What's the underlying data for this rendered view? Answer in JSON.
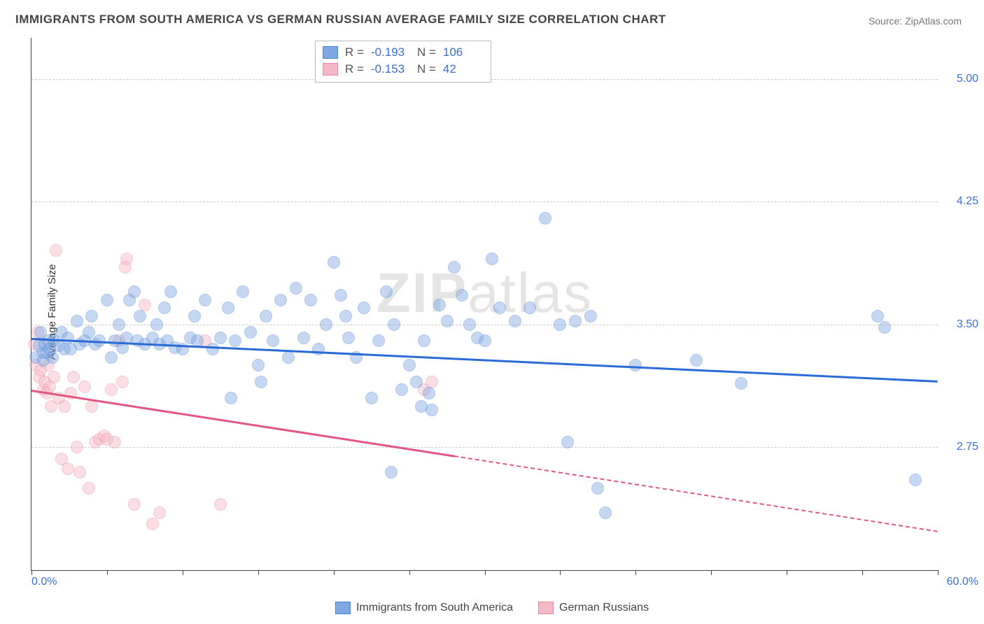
{
  "title": "IMMIGRANTS FROM SOUTH AMERICA VS GERMAN RUSSIAN AVERAGE FAMILY SIZE CORRELATION CHART",
  "source": "Source: ZipAtlas.com",
  "watermark_bold": "ZIP",
  "watermark_light": "atlas",
  "ylabel": "Average Family Size",
  "chart": {
    "type": "scatter",
    "xlim": [
      0,
      60
    ],
    "ylim": [
      2.0,
      5.25
    ],
    "xtick_min_label": "0.0%",
    "xtick_max_label": "60.0%",
    "xtick_positions": [
      0,
      5,
      10,
      15,
      20,
      25,
      30,
      35,
      40,
      45,
      50,
      55,
      60
    ],
    "ytick_positions": [
      2.75,
      3.5,
      4.25,
      5.0
    ],
    "ytick_labels": [
      "2.75",
      "3.50",
      "4.25",
      "5.00"
    ],
    "background_color": "#ffffff",
    "grid_color": "#cccccc",
    "marker_radius": 9,
    "marker_fill_opacity": 0.45,
    "marker_stroke_opacity": 0.85,
    "axis_label_color": "#3b6fd4",
    "title_fontsize": 17,
    "tick_fontsize": 16
  },
  "series": {
    "immigrants": {
      "label": "Immigrants from South America",
      "color": "#7fa8e2",
      "stroke": "#4f84d2",
      "trend_color": "#2a6bd6",
      "R": "-0.193",
      "N": "106",
      "trend": {
        "x1": 0,
        "y1": 3.42,
        "x2": 60,
        "y2": 3.16,
        "dash": false
      },
      "points": [
        [
          0.3,
          3.3
        ],
        [
          0.5,
          3.37
        ],
        [
          0.6,
          3.45
        ],
        [
          0.8,
          3.28
        ],
        [
          0.8,
          3.33
        ],
        [
          0.9,
          3.38
        ],
        [
          1.0,
          3.33
        ],
        [
          1.1,
          3.4
        ],
        [
          1.2,
          3.35
        ],
        [
          1.4,
          3.3
        ],
        [
          1.5,
          3.4
        ],
        [
          1.8,
          3.37
        ],
        [
          2.0,
          3.45
        ],
        [
          2.2,
          3.35
        ],
        [
          2.4,
          3.42
        ],
        [
          2.6,
          3.35
        ],
        [
          3.0,
          3.52
        ],
        [
          3.2,
          3.38
        ],
        [
          3.5,
          3.4
        ],
        [
          3.8,
          3.45
        ],
        [
          4.0,
          3.55
        ],
        [
          4.2,
          3.38
        ],
        [
          4.5,
          3.4
        ],
        [
          5.0,
          3.65
        ],
        [
          5.3,
          3.3
        ],
        [
          5.5,
          3.4
        ],
        [
          5.8,
          3.5
        ],
        [
          6.0,
          3.36
        ],
        [
          6.3,
          3.42
        ],
        [
          6.5,
          3.65
        ],
        [
          6.8,
          3.7
        ],
        [
          7.0,
          3.4
        ],
        [
          7.2,
          3.55
        ],
        [
          7.5,
          3.38
        ],
        [
          8.0,
          3.42
        ],
        [
          8.3,
          3.5
        ],
        [
          8.5,
          3.38
        ],
        [
          8.8,
          3.6
        ],
        [
          9.0,
          3.4
        ],
        [
          9.2,
          3.7
        ],
        [
          9.5,
          3.36
        ],
        [
          10.0,
          3.35
        ],
        [
          10.5,
          3.42
        ],
        [
          10.8,
          3.55
        ],
        [
          11.0,
          3.4
        ],
        [
          11.5,
          3.65
        ],
        [
          12.0,
          3.35
        ],
        [
          12.5,
          3.42
        ],
        [
          13.0,
          3.6
        ],
        [
          13.2,
          3.05
        ],
        [
          13.5,
          3.4
        ],
        [
          14.0,
          3.7
        ],
        [
          14.5,
          3.45
        ],
        [
          15.0,
          3.25
        ],
        [
          15.2,
          3.15
        ],
        [
          15.5,
          3.55
        ],
        [
          16.0,
          3.4
        ],
        [
          16.5,
          3.65
        ],
        [
          17.0,
          3.3
        ],
        [
          17.5,
          3.72
        ],
        [
          18.0,
          3.42
        ],
        [
          18.5,
          3.65
        ],
        [
          19.0,
          3.35
        ],
        [
          19.5,
          3.5
        ],
        [
          20.0,
          3.88
        ],
        [
          20.5,
          3.68
        ],
        [
          20.8,
          3.55
        ],
        [
          21.0,
          3.42
        ],
        [
          21.5,
          3.3
        ],
        [
          22.0,
          3.6
        ],
        [
          22.5,
          3.05
        ],
        [
          23.0,
          3.4
        ],
        [
          23.5,
          3.7
        ],
        [
          23.8,
          2.6
        ],
        [
          24.0,
          3.5
        ],
        [
          24.5,
          3.1
        ],
        [
          25.0,
          3.25
        ],
        [
          25.5,
          3.15
        ],
        [
          25.8,
          3.0
        ],
        [
          26.0,
          3.4
        ],
        [
          26.3,
          3.08
        ],
        [
          26.5,
          2.98
        ],
        [
          27.0,
          3.62
        ],
        [
          27.5,
          3.52
        ],
        [
          28.0,
          3.85
        ],
        [
          28.5,
          3.68
        ],
        [
          29.0,
          3.5
        ],
        [
          29.5,
          3.42
        ],
        [
          30.0,
          3.4
        ],
        [
          30.5,
          3.9
        ],
        [
          31.0,
          3.6
        ],
        [
          32.0,
          3.52
        ],
        [
          33.0,
          3.6
        ],
        [
          34.0,
          4.15
        ],
        [
          35.0,
          3.5
        ],
        [
          35.5,
          2.78
        ],
        [
          36.0,
          3.52
        ],
        [
          37.0,
          3.55
        ],
        [
          37.5,
          2.5
        ],
        [
          38.0,
          2.35
        ],
        [
          40.0,
          3.25
        ],
        [
          44.0,
          3.28
        ],
        [
          47.0,
          3.14
        ],
        [
          56.0,
          3.55
        ],
        [
          56.5,
          3.48
        ],
        [
          58.5,
          2.55
        ]
      ]
    },
    "germans": {
      "label": "German Russians",
      "color": "#f4b7c5",
      "stroke": "#e68aa3",
      "trend_color": "#e25782",
      "R": "-0.153",
      "N": "42",
      "trend": {
        "x1": 0,
        "y1": 3.1,
        "x2": 28,
        "y2": 2.7,
        "dash": false
      },
      "trend_extend": {
        "x1": 28,
        "y1": 2.7,
        "x2": 60,
        "y2": 2.24,
        "dash": true
      },
      "points": [
        [
          0.2,
          3.38
        ],
        [
          0.3,
          3.25
        ],
        [
          0.4,
          3.45
        ],
        [
          0.5,
          3.18
        ],
        [
          0.6,
          3.22
        ],
        [
          0.8,
          3.1
        ],
        [
          0.9,
          3.15
        ],
        [
          1.0,
          3.08
        ],
        [
          1.1,
          3.25
        ],
        [
          1.2,
          3.12
        ],
        [
          1.3,
          3.0
        ],
        [
          1.5,
          3.18
        ],
        [
          1.6,
          3.95
        ],
        [
          1.8,
          3.05
        ],
        [
          2.0,
          2.68
        ],
        [
          2.2,
          3.0
        ],
        [
          2.4,
          2.62
        ],
        [
          2.6,
          3.08
        ],
        [
          2.8,
          3.18
        ],
        [
          3.0,
          2.75
        ],
        [
          3.2,
          2.6
        ],
        [
          3.5,
          3.12
        ],
        [
          3.8,
          2.5
        ],
        [
          4.0,
          3.0
        ],
        [
          4.2,
          2.78
        ],
        [
          4.5,
          2.8
        ],
        [
          4.8,
          2.82
        ],
        [
          5.0,
          2.8
        ],
        [
          5.3,
          3.1
        ],
        [
          5.5,
          2.78
        ],
        [
          5.8,
          3.4
        ],
        [
          6.0,
          3.15
        ],
        [
          6.2,
          3.85
        ],
        [
          6.3,
          3.9
        ],
        [
          6.8,
          2.4
        ],
        [
          7.5,
          3.62
        ],
        [
          8.0,
          2.28
        ],
        [
          8.5,
          2.35
        ],
        [
          11.5,
          3.4
        ],
        [
          12.5,
          2.4
        ],
        [
          26.0,
          3.1
        ],
        [
          26.5,
          3.15
        ]
      ]
    }
  }
}
